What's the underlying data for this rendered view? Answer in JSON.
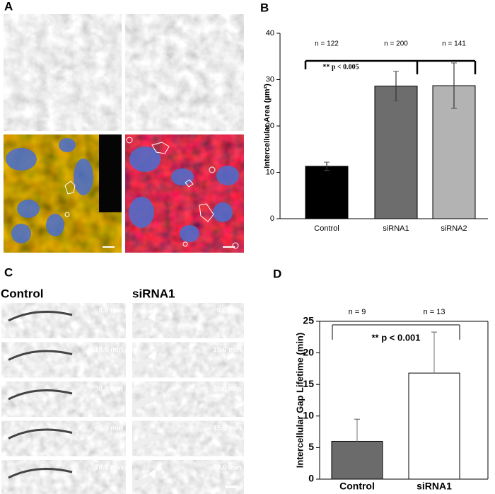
{
  "panel_labels": [
    "A",
    "B",
    "C",
    "D"
  ],
  "panel_c": {
    "column_labels": [
      "Control",
      "siRNA1"
    ],
    "control_times": [
      "0.0 min",
      "15.0 min",
      "30.0 min",
      "45.0 min",
      "70.0 min"
    ],
    "sirna1_times": [
      "0.0 min",
      "15.0 min",
      "30.0 min",
      "45.0 min",
      "70.0 min"
    ]
  },
  "chart_data": [
    {
      "type": "bar",
      "y_label": "Intercellular Area (µm²)",
      "categories": [
        "Control",
        "siRNA1",
        "siRNA2"
      ],
      "values": [
        11.3,
        28.6,
        28.7
      ],
      "error": [
        0.9,
        3.2,
        4.9
      ],
      "error_direction": "both",
      "colors": [
        "#000000",
        "#6d6d6d",
        "#b3b3b3"
      ],
      "ylim": [
        0,
        40
      ],
      "yticks": [
        0,
        10,
        20,
        30,
        40
      ],
      "annotations": [
        "n = 122",
        "n = 200",
        "n = 141"
      ],
      "significance": "** p < 0.005"
    },
    {
      "type": "bar",
      "y_label": "Intercellular Gap Lifetime (min)",
      "categories": [
        "Control",
        "siRNA1"
      ],
      "values": [
        6.0,
        16.8
      ],
      "error": [
        3.5,
        6.5
      ],
      "error_direction": "up",
      "colors": [
        "#6b6b6b",
        "#ffffff"
      ],
      "ylim": [
        0,
        25
      ],
      "yticks": [
        0,
        5,
        10,
        15,
        20,
        25
      ],
      "annotations": [
        "n = 9",
        "n = 13"
      ],
      "significance": "** p < 0.001"
    }
  ]
}
